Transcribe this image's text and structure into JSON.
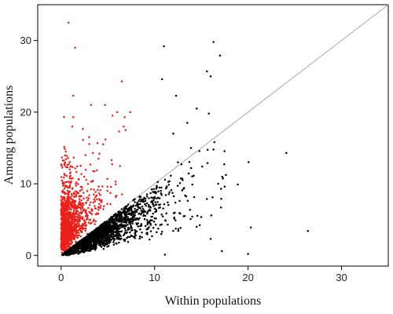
{
  "chart_data": {
    "type": "scatter",
    "xlabel": "Within populations",
    "ylabel": "Among populations",
    "xlim": [
      -2.5,
      35
    ],
    "ylim": [
      -1.5,
      35
    ],
    "x_ticks": [
      0,
      10,
      20,
      30
    ],
    "y_ticks": [
      0,
      10,
      20,
      30
    ],
    "x_tick_labels": [
      "0",
      "10",
      "20",
      "30"
    ],
    "y_tick_labels": [
      "0",
      "10",
      "20",
      "30"
    ],
    "reference_line": {
      "from": [
        0,
        0
      ],
      "to": [
        35,
        35
      ],
      "color": "#a8a8a8"
    },
    "grid": false,
    "series": [
      {
        "color": "#e8211c",
        "n_points": 1200,
        "points": [
          [
            0.8,
            32.5
          ],
          [
            1.5,
            29.0
          ],
          [
            1.3,
            22.3
          ],
          [
            1.3,
            19.3
          ],
          [
            1.2,
            18.0
          ],
          [
            3.2,
            21.0
          ],
          [
            4.7,
            21.0
          ],
          [
            6.5,
            24.3
          ],
          [
            6.0,
            20.0
          ],
          [
            5.5,
            19.5
          ],
          [
            6.8,
            19.3
          ],
          [
            7.4,
            20.0
          ],
          [
            6.7,
            18.0
          ],
          [
            6.2,
            17.3
          ],
          [
            6.9,
            17.5
          ],
          [
            4.5,
            15.5
          ],
          [
            5.4,
            13.3
          ],
          [
            4.0,
            13.5
          ],
          [
            4.1,
            14.2
          ],
          [
            3.4,
            14.3
          ],
          [
            2.6,
            14.0
          ],
          [
            0.5,
            14.5
          ],
          [
            0.7,
            12.3
          ],
          [
            2.1,
            12.5
          ],
          [
            0.4,
            11.2
          ],
          [
            3.0,
            16.5
          ],
          [
            2.8,
            9.0
          ],
          [
            1.9,
            10.6
          ],
          [
            3.2,
            10.3
          ],
          [
            0.3,
            10.0
          ]
        ]
      },
      {
        "color": "#000000",
        "n_points": 2600,
        "points": [
          [
            16.3,
            29.8
          ],
          [
            17.0,
            27.9
          ],
          [
            11.0,
            29.2
          ],
          [
            15.6,
            25.7
          ],
          [
            16.0,
            25.0
          ],
          [
            10.8,
            24.6
          ],
          [
            12.3,
            22.3
          ],
          [
            14.5,
            20.5
          ],
          [
            13.5,
            18.5
          ],
          [
            15.8,
            19.8
          ],
          [
            12.0,
            17.0
          ],
          [
            16.4,
            15.8
          ],
          [
            13.9,
            15.0
          ],
          [
            24.1,
            14.3
          ],
          [
            16.8,
            10.0
          ],
          [
            17.5,
            9.6
          ],
          [
            18.9,
            9.9
          ],
          [
            16.2,
            8.1
          ],
          [
            17.1,
            6.7
          ],
          [
            20.3,
            3.9
          ],
          [
            26.4,
            3.4
          ],
          [
            20.0,
            0.2
          ],
          [
            17.2,
            0.6
          ],
          [
            16.0,
            2.3
          ],
          [
            14.5,
            4.0
          ],
          [
            11.1,
            0.1
          ],
          [
            10.8,
            3.3
          ],
          [
            12.5,
            13.0
          ],
          [
            13.0,
            10.5
          ],
          [
            15.1,
            12.4
          ]
        ]
      }
    ]
  }
}
